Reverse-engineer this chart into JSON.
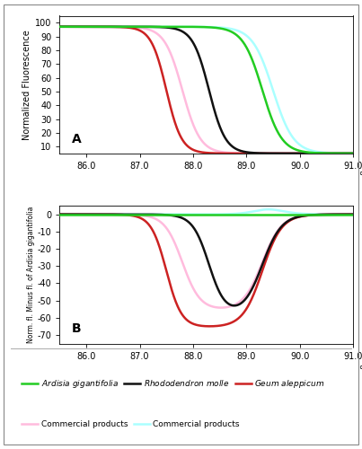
{
  "x_min": 85.5,
  "x_max": 91.0,
  "x_ticks": [
    86.0,
    87.0,
    88.0,
    89.0,
    90.0,
    91.0
  ],
  "panel_A": {
    "ylabel": "Normalized Fluorescence",
    "ylim": [
      5,
      105
    ],
    "yticks": [
      10,
      20,
      30,
      40,
      50,
      60,
      70,
      80,
      90,
      100
    ],
    "label": "A"
  },
  "panel_B": {
    "ylabel": "Norm. fl. Minus fl. of Ardisia gigantifolia",
    "ylim": [
      -75,
      5
    ],
    "yticks": [
      0,
      -10,
      -20,
      -30,
      -40,
      -50,
      -60,
      -70
    ],
    "label": "B"
  },
  "colors": {
    "ardisia": "#22cc22",
    "rhododendron": "#111111",
    "geum": "#cc2222",
    "commercial_pink": "#ffbbdd",
    "commercial_cyan": "#aaffff"
  },
  "curves": {
    "ardisia_x0": 89.3,
    "ardisia_k": 5.5,
    "rhodo_x0": 88.3,
    "rhodo_k": 6.5,
    "geum_x0": 87.5,
    "geum_k": 7.0,
    "comm_pink_x0": 87.8,
    "comm_pink_k": 6.0,
    "comm_cyan_x0": 89.5,
    "comm_cyan_k": 5.2
  },
  "legend_row1": [
    {
      "label": "Ardisia gigantifolia",
      "color": "#22cc22",
      "italic": true
    },
    {
      "label": "Rhododendron molle",
      "color": "#111111",
      "italic": true
    },
    {
      "label": "Geum aleppicum",
      "color": "#cc2222",
      "italic": true
    }
  ],
  "legend_row2": [
    {
      "label": "Commercial products",
      "color": "#ffbbdd",
      "italic": false
    },
    {
      "label": "Commercial products",
      "color": "#aaffff",
      "italic": false
    }
  ]
}
